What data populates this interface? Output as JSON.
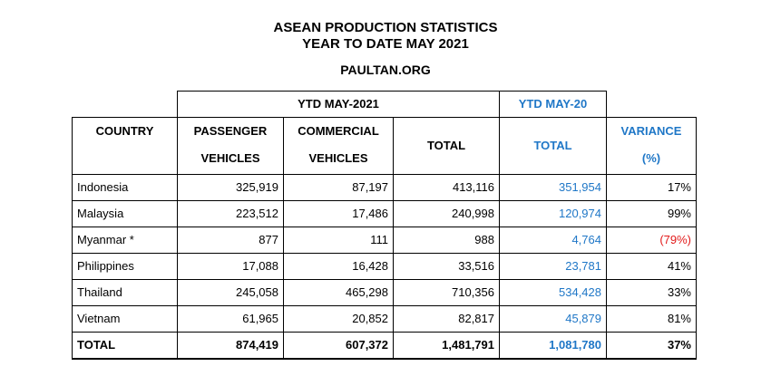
{
  "title": {
    "line1": "ASEAN PRODUCTION STATISTICS",
    "line2": "YEAR TO DATE MAY 2021",
    "source": "PAULTAN.ORG"
  },
  "table": {
    "group_headers": {
      "ytd_2021": "YTD MAY-2021",
      "ytd_2020": "YTD MAY-20"
    },
    "columns": {
      "country": "COUNTRY",
      "passenger_1": "PASSENGER",
      "passenger_2": "VEHICLES",
      "commercial_1": "COMMERCIAL",
      "commercial_2": "VEHICLES",
      "total": "TOTAL",
      "total_2020": "TOTAL",
      "variance_1": "VARIANCE",
      "variance_2": "(%)"
    },
    "rows": [
      {
        "country": "Indonesia",
        "passenger": "325,919",
        "commercial": "87,197",
        "total": "413,116",
        "total_2020": "351,954",
        "variance": "17%"
      },
      {
        "country": "Malaysia",
        "passenger": "223,512",
        "commercial": "17,486",
        "total": "240,998",
        "total_2020": "120,974",
        "variance": "99%"
      },
      {
        "country": "Myanmar *",
        "passenger": "877",
        "commercial": "111",
        "total": "988",
        "total_2020": "4,764",
        "variance": "(79%)"
      },
      {
        "country": "Philippines",
        "passenger": "17,088",
        "commercial": "16,428",
        "total": "33,516",
        "total_2020": "23,781",
        "variance": "41%"
      },
      {
        "country": "Thailand",
        "passenger": "245,058",
        "commercial": "465,298",
        "total": "710,356",
        "total_2020": "534,428",
        "variance": "33%"
      },
      {
        "country": "Vietnam",
        "passenger": "61,965",
        "commercial": "20,852",
        "total": "82,817",
        "total_2020": "45,879",
        "variance": "81%"
      }
    ],
    "total_row": {
      "country": "TOTAL",
      "passenger": "874,419",
      "commercial": "607,372",
      "total": "1,481,791",
      "total_2020": "1,081,780",
      "variance": "37%"
    }
  },
  "colors": {
    "ytd_2020_text": "#1f77c7",
    "negative_variance": "#e21a1a"
  }
}
